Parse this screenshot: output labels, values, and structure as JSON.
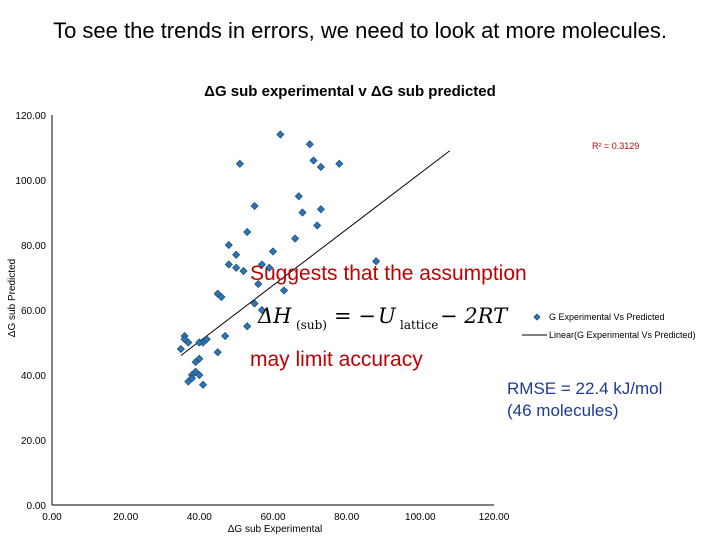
{
  "slide": {
    "title": "To see the trends in errors, we need to look at more molecules.",
    "note_line1": "Suggests that the assumption",
    "note_line2": "may limit accuracy",
    "formula": {
      "lhs": "ΔH",
      "lhs_sub": "(sub)",
      "eq": "= −",
      "u": "U",
      "u_sub": "lattice",
      "rhs": "− 2RT"
    },
    "rmse_line1": "RMSE = 22.4 kJ/mol",
    "rmse_line2": "(46 molecules)"
  },
  "chart_data": {
    "type": "scatter",
    "title": "ΔG sub experimental v ΔG sub predicted",
    "xlabel": "ΔG sub Experimental",
    "ylabel": "ΔG sub Predicted",
    "xlim": [
      0,
      120
    ],
    "ylim": [
      0,
      120
    ],
    "x_ticks": [
      "0.00",
      "20.00",
      "40.00",
      "60.00",
      "80.00",
      "100.00",
      "120.00"
    ],
    "y_ticks": [
      "0.00",
      "20.00",
      "40.00",
      "60.00",
      "80.00",
      "100.00",
      "120.00"
    ],
    "grid": false,
    "legend_position": "right",
    "r_squared_label": "R² = 0.3129",
    "series": [
      {
        "name": "G Experimental Vs Predicted",
        "type": "scatter",
        "color": "#2e75b6",
        "x": [
          62,
          70,
          71,
          73,
          78,
          51,
          55,
          67,
          73,
          68,
          53,
          48,
          50,
          72,
          66,
          60,
          57,
          48,
          50,
          52,
          59,
          63,
          88,
          45,
          46,
          56,
          53,
          36,
          37,
          35,
          42,
          41,
          40,
          47,
          45,
          40,
          39,
          38,
          37,
          40,
          41,
          39,
          36,
          38,
          55,
          57
        ],
        "y": [
          114,
          111,
          106,
          104,
          105,
          105,
          92,
          95,
          91,
          90,
          84,
          80,
          77,
          86,
          82,
          78,
          74,
          74,
          73,
          72,
          73,
          66,
          75,
          65,
          64,
          68,
          55,
          52,
          50,
          48,
          51,
          50,
          50,
          52,
          47,
          45,
          41,
          40,
          38,
          40,
          37,
          44,
          51,
          39,
          62,
          60
        ]
      },
      {
        "name": "Linear(G Experimental Vs Predicted)",
        "type": "line",
        "color": "#000000",
        "x": [
          35,
          108
        ],
        "y": [
          46,
          109
        ]
      }
    ]
  }
}
